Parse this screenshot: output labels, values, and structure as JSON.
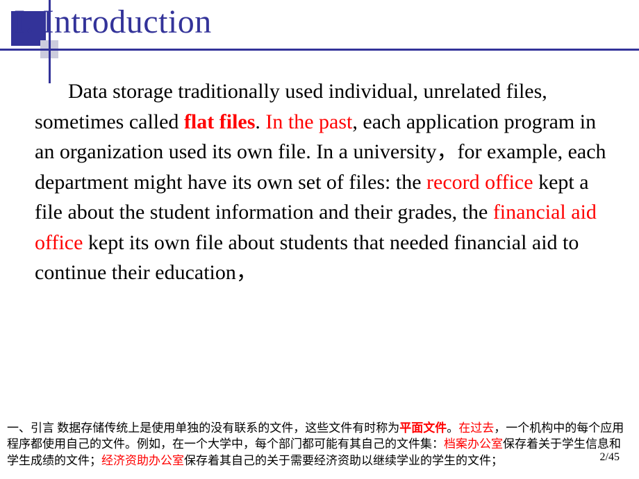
{
  "title": "I. Introduction",
  "body": {
    "seg1": "Data storage traditionally used individual, unrelated files, sometimes called ",
    "seg2_flatfiles": "flat files",
    "seg3": ". ",
    "seg4_inthepast": "In the past",
    "seg5": ", each application program in an organization used its own file. In a university，for example, each department might have its own set of files: the ",
    "seg6_recordoffice": "record office",
    "seg7": " kept a file about the student information and their grades, the ",
    "seg8_financialaid": "financial aid office",
    "seg9": " kept its own file about students that needed financial aid to continue their education，"
  },
  "footer": {
    "t1": "一、引言  数据存储传统上是使用单独的没有联系的文件，这些文件有时称为",
    "t2_flat": "平面文件",
    "t3": "。",
    "t4_past": "在过去",
    "t5": "，一个机构中的每个应用程序都使用自己的文件。例如，在一个大学中，每个部门都可能有其自己的文件集：",
    "t6_record": "档案办公室",
    "t7": "保存着关于学生信息和学生成绩的文件；",
    "t8_fin": "经济资助办公室",
    "t9": "保存着其自己的关于需要经济资助以继续学业的学生的文件；"
  },
  "page": "2/45",
  "colors": {
    "title": "#333399",
    "highlight": "#ff0000",
    "text": "#000000",
    "bg": "#ffffff"
  },
  "fonts": {
    "title_size": 48,
    "body_size": 30,
    "footer_size": 17
  }
}
